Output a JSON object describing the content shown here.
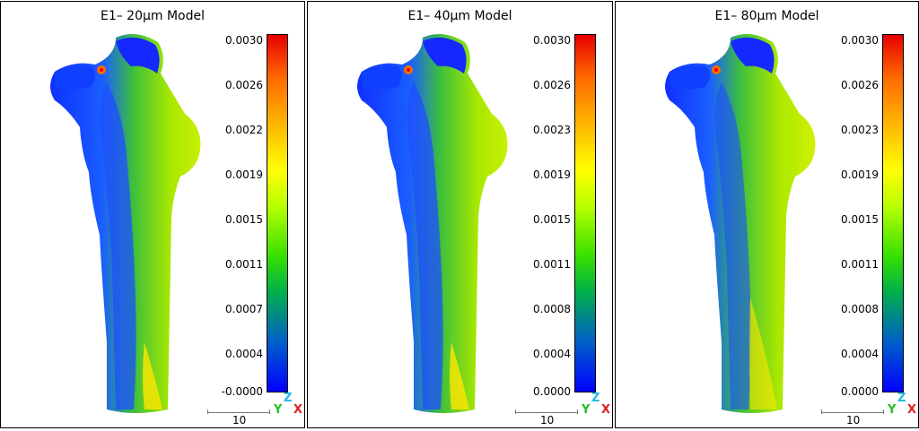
{
  "panels": [
    {
      "title": "E1– 20µm Model",
      "ticks": [
        "0.0030",
        "0.0026",
        "0.0022",
        "0.0019",
        "0.0015",
        "0.0011",
        "0.0007",
        "0.0004",
        "-0.0000"
      ],
      "scale_label": "10"
    },
    {
      "title": "E1– 40µm Model",
      "ticks": [
        "0.0030",
        "0.0026",
        "0.0023",
        "0.0019",
        "0.0015",
        "0.0011",
        "0.0008",
        "0.0004",
        "0.0000"
      ],
      "scale_label": "10"
    },
    {
      "title": "E1– 80µm Model",
      "ticks": [
        "0.0030",
        "0.0026",
        "0.0023",
        "0.0019",
        "0.0015",
        "0.0011",
        "0.0008",
        "0.0004",
        "0.0000"
      ],
      "scale_label": "10"
    }
  ],
  "axes": {
    "z": "Z",
    "y": "Y",
    "x": "X"
  },
  "colors": {
    "max": "#e80000",
    "mid": "#ffff00",
    "low": "#38e000",
    "min": "#0000ff",
    "axis_x": "#e02020",
    "axis_y": "#20c020",
    "axis_z": "#20b8e8"
  }
}
